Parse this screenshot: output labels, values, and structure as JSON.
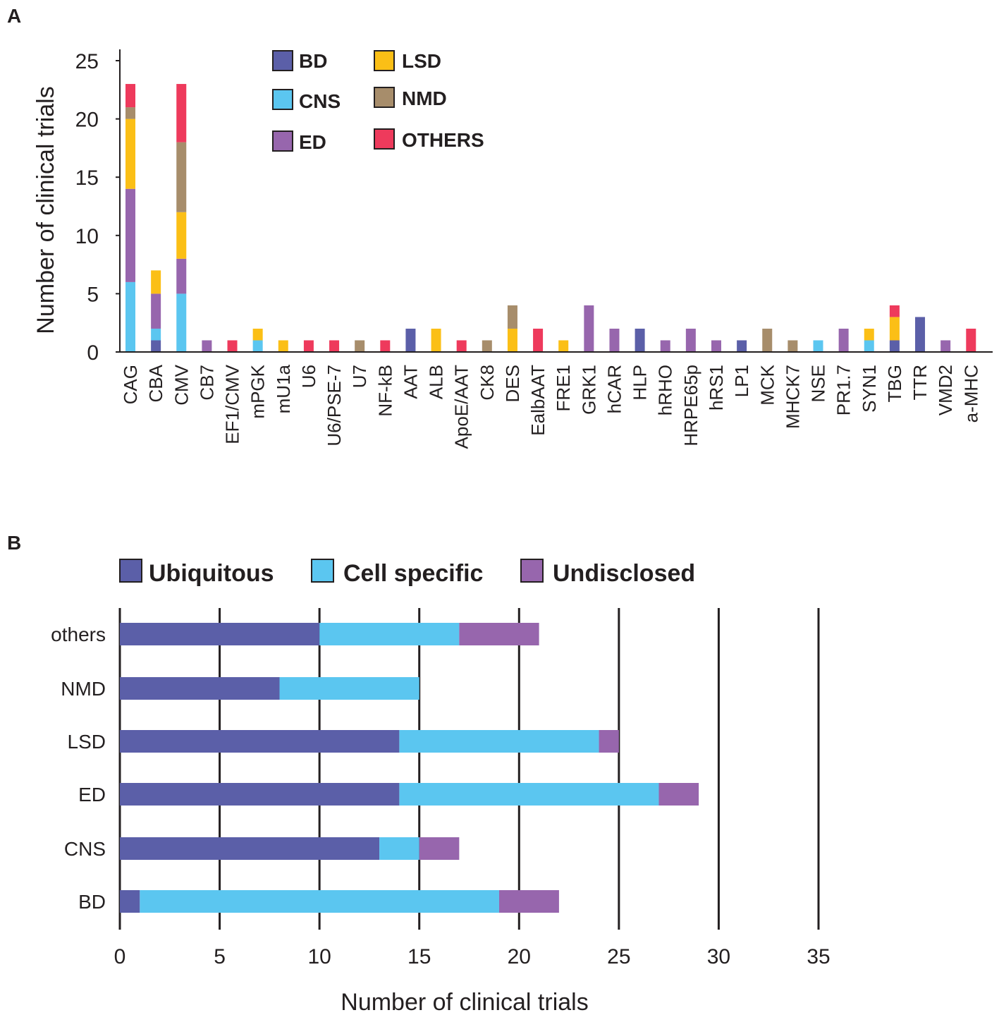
{
  "colors": {
    "BD": "#5b5fa8",
    "CNS": "#5bc6f0",
    "ED": "#9766ad",
    "LSD": "#fbbf16",
    "NMD": "#a78d6b",
    "OTHERS": "#ee3a5c",
    "axis": "#231f20"
  },
  "chart_data": [
    {
      "panel": "A",
      "type": "bar",
      "stacked": true,
      "orientation": "vertical",
      "ylabel": "Number of clinical trials",
      "ylim": [
        0,
        25
      ],
      "yticks": [
        "0",
        "5",
        "10",
        "15",
        "20",
        "25"
      ],
      "legend_position": "top-center",
      "categories": [
        "CAG",
        "CBA",
        "CMV",
        "CB7",
        "EF1/CMV",
        "mPGK",
        "mU1a",
        "U6",
        "U6/PSE-7",
        "U7",
        "NF-kB",
        "AAT",
        "ALB",
        "ApoE/AAT",
        "CK8",
        "DES",
        "EalbAAT",
        "FRE1",
        "GRK1",
        "hCAR",
        "HLP",
        "hRHO",
        "HRPE65p",
        "hRS1",
        "LP1",
        "MCK",
        "MHCK7",
        "NSE",
        "PR1.7",
        "SYN1",
        "TBG",
        "TTR",
        "VMD2",
        "a-MHC"
      ],
      "series": [
        {
          "name": "BD",
          "values": [
            0,
            1,
            0,
            0,
            0,
            0,
            0,
            0,
            0,
            0,
            0,
            2,
            0,
            0,
            0,
            0,
            0,
            0,
            0,
            0,
            2,
            0,
            0,
            0,
            1,
            0,
            0,
            0,
            0,
            0,
            1,
            3,
            0,
            0
          ]
        },
        {
          "name": "CNS",
          "values": [
            6,
            1,
            5,
            0,
            0,
            1,
            0,
            0,
            0,
            0,
            0,
            0,
            0,
            0,
            0,
            0,
            0,
            0,
            0,
            0,
            0,
            0,
            0,
            0,
            0,
            0,
            0,
            1,
            0,
            1,
            0,
            0,
            0,
            0
          ]
        },
        {
          "name": "ED",
          "values": [
            8,
            3,
            3,
            1,
            0,
            0,
            0,
            0,
            0,
            0,
            0,
            0,
            0,
            0,
            0,
            0,
            0,
            0,
            4,
            2,
            0,
            1,
            2,
            1,
            0,
            0,
            0,
            0,
            2,
            0,
            0,
            0,
            1,
            0
          ]
        },
        {
          "name": "LSD",
          "values": [
            6,
            2,
            4,
            0,
            0,
            1,
            1,
            0,
            0,
            0,
            0,
            0,
            2,
            0,
            0,
            2,
            0,
            1,
            0,
            0,
            0,
            0,
            0,
            0,
            0,
            0,
            0,
            0,
            0,
            1,
            2,
            0,
            0,
            0
          ]
        },
        {
          "name": "NMD",
          "values": [
            1,
            0,
            6,
            0,
            0,
            0,
            0,
            0,
            0,
            1,
            0,
            0,
            0,
            0,
            1,
            2,
            0,
            0,
            0,
            0,
            0,
            0,
            0,
            0,
            0,
            2,
            1,
            0,
            0,
            0,
            0,
            0,
            0,
            0
          ]
        },
        {
          "name": "OTHERS",
          "values": [
            2,
            0,
            5,
            0,
            1,
            0,
            0,
            1,
            1,
            0,
            1,
            0,
            0,
            1,
            0,
            0,
            2,
            0,
            0,
            0,
            0,
            0,
            0,
            0,
            0,
            0,
            0,
            0,
            0,
            0,
            1,
            0,
            0,
            2
          ]
        }
      ]
    },
    {
      "panel": "B",
      "type": "bar",
      "stacked": true,
      "orientation": "horizontal",
      "xlabel": "Number of clinical trials",
      "xlim": [
        0,
        35
      ],
      "xticks": [
        "0",
        "5",
        "10",
        "15",
        "20",
        "25",
        "30",
        "35"
      ],
      "grid": true,
      "legend_position": "top-left",
      "categories": [
        "others",
        "NMD",
        "LSD",
        "ED",
        "CNS",
        "BD"
      ],
      "series": [
        {
          "name": "Ubiquitous",
          "color": "#5b5fa8",
          "values": [
            10,
            8,
            14,
            14,
            13,
            1
          ]
        },
        {
          "name": "Cell specific",
          "color": "#5bc6f0",
          "values": [
            7,
            7,
            10,
            13,
            2,
            18
          ]
        },
        {
          "name": "Undisclosed",
          "color": "#9766ad",
          "values": [
            4,
            0,
            1,
            2,
            2,
            3
          ]
        }
      ]
    }
  ]
}
